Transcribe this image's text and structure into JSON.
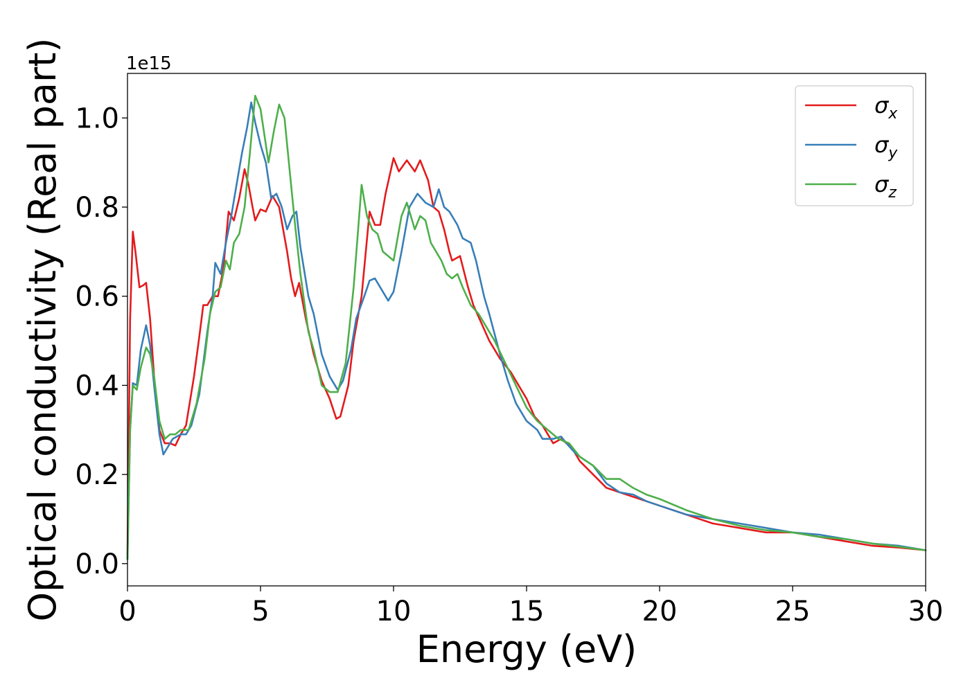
{
  "chart_data": {
    "type": "line",
    "xlabel": "Energy (eV)",
    "ylabel": "Optical conductivity (Real part)",
    "y_offset_label": "1e15",
    "xlim": [
      0,
      30
    ],
    "ylim": [
      -0.05,
      1.1
    ],
    "x_ticks": [
      0,
      5,
      10,
      15,
      20,
      25,
      30
    ],
    "x_tick_labels": [
      "0",
      "5",
      "10",
      "15",
      "20",
      "25",
      "30"
    ],
    "y_ticks": [
      0.0,
      0.2,
      0.4,
      0.6,
      0.8,
      1.0
    ],
    "y_tick_labels": [
      "0.0",
      "0.2",
      "0.4",
      "0.6",
      "0.8",
      "1.0"
    ],
    "grid": false,
    "legend_placement": "top-right",
    "series": [
      {
        "name": "σx",
        "symbol": "σ",
        "subscript": "x",
        "color": "#e41a1c",
        "points": [
          [
            0,
            0.02
          ],
          [
            0.1,
            0.55
          ],
          [
            0.2,
            0.745
          ],
          [
            0.3,
            0.7
          ],
          [
            0.45,
            0.62
          ],
          [
            0.6,
            0.625
          ],
          [
            0.7,
            0.63
          ],
          [
            0.85,
            0.55
          ],
          [
            1.0,
            0.42
          ],
          [
            1.2,
            0.3
          ],
          [
            1.4,
            0.27
          ],
          [
            1.6,
            0.27
          ],
          [
            1.8,
            0.265
          ],
          [
            2.0,
            0.29
          ],
          [
            2.2,
            0.31
          ],
          [
            2.5,
            0.42
          ],
          [
            2.7,
            0.51
          ],
          [
            2.85,
            0.58
          ],
          [
            3.0,
            0.58
          ],
          [
            3.2,
            0.6
          ],
          [
            3.4,
            0.6
          ],
          [
            3.6,
            0.66
          ],
          [
            3.8,
            0.79
          ],
          [
            4.0,
            0.77
          ],
          [
            4.2,
            0.82
          ],
          [
            4.4,
            0.885
          ],
          [
            4.55,
            0.85
          ],
          [
            4.7,
            0.8
          ],
          [
            4.8,
            0.77
          ],
          [
            5.0,
            0.795
          ],
          [
            5.2,
            0.79
          ],
          [
            5.45,
            0.825
          ],
          [
            5.7,
            0.8
          ],
          [
            6.0,
            0.7
          ],
          [
            6.15,
            0.64
          ],
          [
            6.3,
            0.6
          ],
          [
            6.45,
            0.63
          ],
          [
            6.7,
            0.55
          ],
          [
            7.0,
            0.47
          ],
          [
            7.3,
            0.41
          ],
          [
            7.6,
            0.37
          ],
          [
            7.85,
            0.325
          ],
          [
            8.0,
            0.33
          ],
          [
            8.3,
            0.4
          ],
          [
            8.5,
            0.5
          ],
          [
            8.8,
            0.6
          ],
          [
            9.1,
            0.79
          ],
          [
            9.3,
            0.76
          ],
          [
            9.5,
            0.76
          ],
          [
            9.7,
            0.83
          ],
          [
            10.0,
            0.91
          ],
          [
            10.2,
            0.88
          ],
          [
            10.5,
            0.905
          ],
          [
            10.8,
            0.88
          ],
          [
            11.0,
            0.905
          ],
          [
            11.3,
            0.86
          ],
          [
            11.5,
            0.8
          ],
          [
            11.7,
            0.79
          ],
          [
            11.9,
            0.75
          ],
          [
            12.1,
            0.7
          ],
          [
            12.2,
            0.68
          ],
          [
            12.5,
            0.69
          ],
          [
            12.8,
            0.62
          ],
          [
            13.0,
            0.58
          ],
          [
            13.3,
            0.54
          ],
          [
            13.6,
            0.5
          ],
          [
            14.0,
            0.46
          ],
          [
            14.4,
            0.43
          ],
          [
            14.7,
            0.4
          ],
          [
            15.0,
            0.37
          ],
          [
            15.3,
            0.33
          ],
          [
            15.6,
            0.31
          ],
          [
            16.0,
            0.27
          ],
          [
            16.3,
            0.28
          ],
          [
            16.7,
            0.26
          ],
          [
            17.0,
            0.23
          ],
          [
            17.5,
            0.2
          ],
          [
            18.0,
            0.17
          ],
          [
            18.5,
            0.16
          ],
          [
            19.0,
            0.15
          ],
          [
            19.5,
            0.14
          ],
          [
            20.0,
            0.13
          ],
          [
            21.0,
            0.11
          ],
          [
            22.0,
            0.09
          ],
          [
            23.0,
            0.08
          ],
          [
            24.0,
            0.07
          ],
          [
            25.0,
            0.07
          ],
          [
            26.0,
            0.06
          ],
          [
            27.0,
            0.05
          ],
          [
            28.0,
            0.04
          ],
          [
            29.0,
            0.036
          ],
          [
            30.0,
            0.03
          ]
        ]
      },
      {
        "name": "σy",
        "symbol": "σ",
        "subscript": "y",
        "color": "#377eb8",
        "points": [
          [
            0,
            0.01
          ],
          [
            0.1,
            0.3
          ],
          [
            0.2,
            0.405
          ],
          [
            0.35,
            0.4
          ],
          [
            0.5,
            0.48
          ],
          [
            0.7,
            0.535
          ],
          [
            0.85,
            0.49
          ],
          [
            1.0,
            0.4
          ],
          [
            1.2,
            0.29
          ],
          [
            1.35,
            0.245
          ],
          [
            1.5,
            0.26
          ],
          [
            1.7,
            0.28
          ],
          [
            2.0,
            0.29
          ],
          [
            2.2,
            0.29
          ],
          [
            2.4,
            0.31
          ],
          [
            2.7,
            0.38
          ],
          [
            3.0,
            0.52
          ],
          [
            3.2,
            0.6
          ],
          [
            3.3,
            0.675
          ],
          [
            3.5,
            0.65
          ],
          [
            3.7,
            0.72
          ],
          [
            3.9,
            0.78
          ],
          [
            4.1,
            0.85
          ],
          [
            4.3,
            0.92
          ],
          [
            4.5,
            0.98
          ],
          [
            4.65,
            1.035
          ],
          [
            4.8,
            0.99
          ],
          [
            5.0,
            0.94
          ],
          [
            5.2,
            0.9
          ],
          [
            5.4,
            0.82
          ],
          [
            5.6,
            0.83
          ],
          [
            5.8,
            0.8
          ],
          [
            6.0,
            0.75
          ],
          [
            6.2,
            0.78
          ],
          [
            6.35,
            0.79
          ],
          [
            6.5,
            0.71
          ],
          [
            6.8,
            0.6
          ],
          [
            7.0,
            0.56
          ],
          [
            7.3,
            0.47
          ],
          [
            7.6,
            0.42
          ],
          [
            7.9,
            0.39
          ],
          [
            8.1,
            0.41
          ],
          [
            8.4,
            0.48
          ],
          [
            8.6,
            0.55
          ],
          [
            8.9,
            0.6
          ],
          [
            9.1,
            0.635
          ],
          [
            9.3,
            0.64
          ],
          [
            9.5,
            0.62
          ],
          [
            9.8,
            0.59
          ],
          [
            10.0,
            0.61
          ],
          [
            10.3,
            0.7
          ],
          [
            10.6,
            0.8
          ],
          [
            10.9,
            0.83
          ],
          [
            11.2,
            0.81
          ],
          [
            11.5,
            0.8
          ],
          [
            11.7,
            0.84
          ],
          [
            11.9,
            0.8
          ],
          [
            12.1,
            0.79
          ],
          [
            12.4,
            0.76
          ],
          [
            12.6,
            0.73
          ],
          [
            12.9,
            0.72
          ],
          [
            13.1,
            0.68
          ],
          [
            13.4,
            0.6
          ],
          [
            13.6,
            0.56
          ],
          [
            14.0,
            0.47
          ],
          [
            14.3,
            0.41
          ],
          [
            14.6,
            0.36
          ],
          [
            15.0,
            0.32
          ],
          [
            15.4,
            0.3
          ],
          [
            15.6,
            0.28
          ],
          [
            16.0,
            0.28
          ],
          [
            16.3,
            0.285
          ],
          [
            16.5,
            0.27
          ],
          [
            16.8,
            0.25
          ],
          [
            17.0,
            0.24
          ],
          [
            17.5,
            0.22
          ],
          [
            18.0,
            0.18
          ],
          [
            18.5,
            0.16
          ],
          [
            19.0,
            0.155
          ],
          [
            19.5,
            0.14
          ],
          [
            20.0,
            0.13
          ],
          [
            21.0,
            0.11
          ],
          [
            22.0,
            0.1
          ],
          [
            23.0,
            0.09
          ],
          [
            24.0,
            0.08
          ],
          [
            25.0,
            0.07
          ],
          [
            26.0,
            0.065
          ],
          [
            27.0,
            0.055
          ],
          [
            28.0,
            0.045
          ],
          [
            29.0,
            0.04
          ],
          [
            30.0,
            0.03
          ]
        ]
      },
      {
        "name": "σz",
        "symbol": "σ",
        "subscript": "z",
        "color": "#4daf4a",
        "points": [
          [
            0,
            0.01
          ],
          [
            0.1,
            0.3
          ],
          [
            0.2,
            0.4
          ],
          [
            0.35,
            0.39
          ],
          [
            0.5,
            0.44
          ],
          [
            0.7,
            0.485
          ],
          [
            0.85,
            0.47
          ],
          [
            1.0,
            0.42
          ],
          [
            1.2,
            0.32
          ],
          [
            1.4,
            0.28
          ],
          [
            1.6,
            0.29
          ],
          [
            1.8,
            0.29
          ],
          [
            2.0,
            0.3
          ],
          [
            2.3,
            0.3
          ],
          [
            2.6,
            0.36
          ],
          [
            2.9,
            0.46
          ],
          [
            3.1,
            0.56
          ],
          [
            3.3,
            0.61
          ],
          [
            3.5,
            0.62
          ],
          [
            3.7,
            0.68
          ],
          [
            3.85,
            0.66
          ],
          [
            4.0,
            0.72
          ],
          [
            4.2,
            0.74
          ],
          [
            4.4,
            0.8
          ],
          [
            4.6,
            0.92
          ],
          [
            4.8,
            1.05
          ],
          [
            5.0,
            1.02
          ],
          [
            5.15,
            0.96
          ],
          [
            5.3,
            0.9
          ],
          [
            5.5,
            0.97
          ],
          [
            5.7,
            1.03
          ],
          [
            5.9,
            1.0
          ],
          [
            6.1,
            0.88
          ],
          [
            6.3,
            0.76
          ],
          [
            6.5,
            0.65
          ],
          [
            6.8,
            0.52
          ],
          [
            7.0,
            0.48
          ],
          [
            7.3,
            0.4
          ],
          [
            7.6,
            0.385
          ],
          [
            7.9,
            0.385
          ],
          [
            8.2,
            0.45
          ],
          [
            8.5,
            0.62
          ],
          [
            8.8,
            0.85
          ],
          [
            9.0,
            0.78
          ],
          [
            9.2,
            0.75
          ],
          [
            9.4,
            0.74
          ],
          [
            9.6,
            0.7
          ],
          [
            9.8,
            0.69
          ],
          [
            10.0,
            0.68
          ],
          [
            10.3,
            0.78
          ],
          [
            10.5,
            0.81
          ],
          [
            10.8,
            0.75
          ],
          [
            11.0,
            0.78
          ],
          [
            11.2,
            0.77
          ],
          [
            11.4,
            0.72
          ],
          [
            11.6,
            0.7
          ],
          [
            11.8,
            0.68
          ],
          [
            12.0,
            0.65
          ],
          [
            12.2,
            0.64
          ],
          [
            12.4,
            0.65
          ],
          [
            12.6,
            0.62
          ],
          [
            12.9,
            0.58
          ],
          [
            13.2,
            0.56
          ],
          [
            13.5,
            0.53
          ],
          [
            13.8,
            0.5
          ],
          [
            14.2,
            0.45
          ],
          [
            14.6,
            0.4
          ],
          [
            15.0,
            0.35
          ],
          [
            15.4,
            0.32
          ],
          [
            15.8,
            0.3
          ],
          [
            16.2,
            0.28
          ],
          [
            16.6,
            0.27
          ],
          [
            17.0,
            0.24
          ],
          [
            17.5,
            0.22
          ],
          [
            18.0,
            0.19
          ],
          [
            18.5,
            0.19
          ],
          [
            19.0,
            0.17
          ],
          [
            19.5,
            0.155
          ],
          [
            20.0,
            0.145
          ],
          [
            21.0,
            0.12
          ],
          [
            22.0,
            0.1
          ],
          [
            23.0,
            0.085
          ],
          [
            24.0,
            0.075
          ],
          [
            25.0,
            0.07
          ],
          [
            26.0,
            0.06
          ],
          [
            27.0,
            0.055
          ],
          [
            28.0,
            0.045
          ],
          [
            29.0,
            0.038
          ],
          [
            30.0,
            0.03
          ]
        ]
      }
    ]
  }
}
